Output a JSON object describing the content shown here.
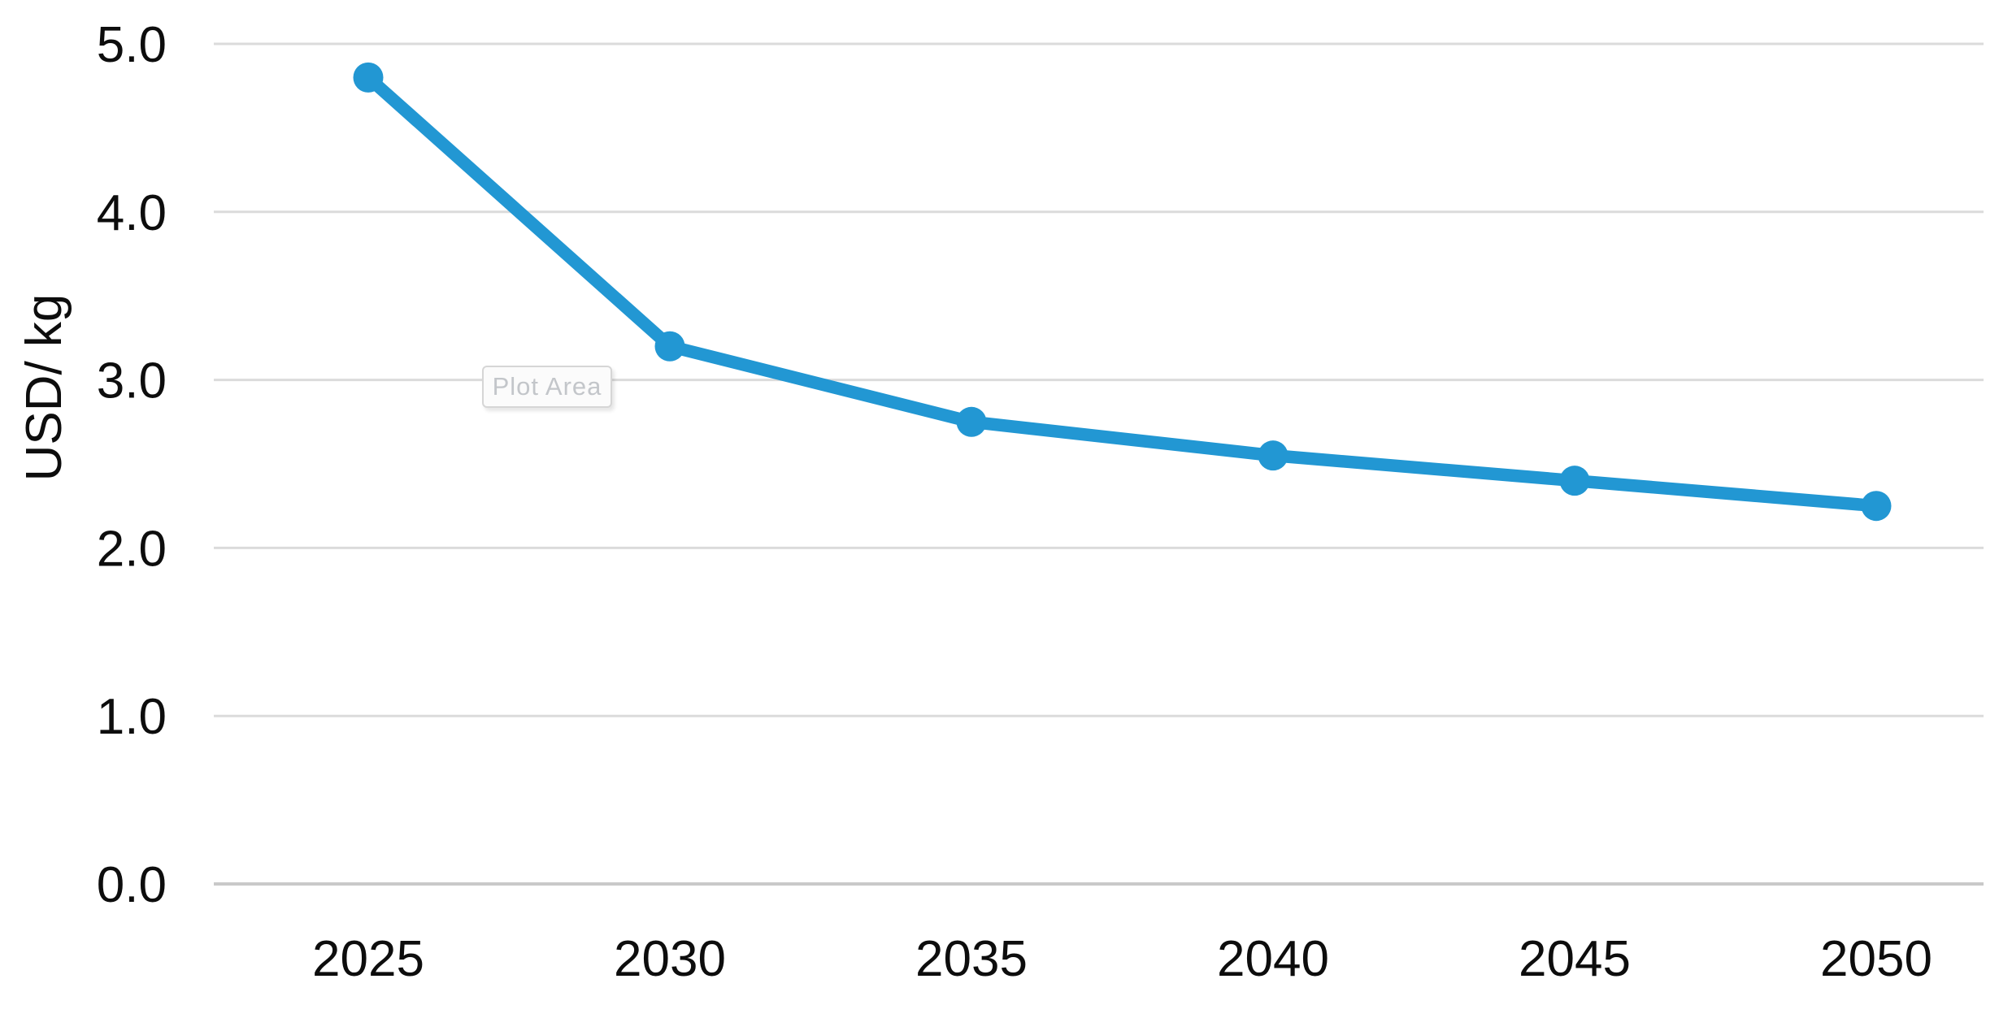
{
  "chart_data": {
    "type": "line",
    "title": "",
    "categories": [
      "2025",
      "2030",
      "2035",
      "2040",
      "2045",
      "2050"
    ],
    "values": [
      4.8,
      3.2,
      2.75,
      2.55,
      2.4,
      2.25
    ],
    "xlabel": "",
    "ylabel": "USD/ kg",
    "ylim": [
      0.0,
      5.0
    ],
    "y_ticks": [
      {
        "label": "0.0",
        "value": 0.0
      },
      {
        "label": "1.0",
        "value": 1.0
      },
      {
        "label": "2.0",
        "value": 2.0
      },
      {
        "label": "3.0",
        "value": 3.0
      },
      {
        "label": "4.0",
        "value": 4.0
      },
      {
        "label": "5.0",
        "value": 5.0
      }
    ],
    "grid": "horizontal-gridlines-on",
    "legend": "none",
    "colors": {
      "line": "#2297D3",
      "marker": "#2297D3",
      "gridline": "#dbdbdb",
      "axis_line": "#c9c9c9",
      "tick_text": "#0d0d0d"
    }
  },
  "overlay": {
    "plot_area_label": "Plot Area"
  }
}
